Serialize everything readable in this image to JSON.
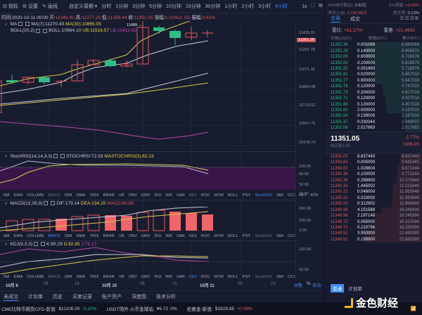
{
  "toolbar": {
    "indicators": "指标",
    "settings": "设置",
    "draw": "画线",
    "custom_period": "自定义周期",
    "intervals": [
      "分时",
      "1分钟",
      "3分钟",
      "5分钟",
      "10分钟",
      "15分钟",
      "30分钟",
      "1小时",
      "2小时",
      "3小时",
      "4小时"
    ],
    "active_interval": "4小时",
    "refresh": "1s",
    "window_mode": "单窗口"
  },
  "info": {
    "time_label": "时间:",
    "time": "2020-10-11 00:00",
    "open_label": "开:",
    "open": "11349.90",
    "high_label": "高:",
    "high": "11377.20",
    "low_label": "低:",
    "low": "11308.44",
    "close_label": "收:",
    "close": "11351.05",
    "change_label": "涨幅:",
    "change": "0.01%(1.15)",
    "amplitude_label": "振幅:",
    "amplitude": "0.61%"
  },
  "main_chart": {
    "ma_label": "MA",
    "ma7": "MA(7):11270.43",
    "ma30": "MA(30):10865.05",
    "boll_label": "BOLL(20,2)",
    "boll": "BOLL:10964.10",
    "ub": "UB:11516.57",
    "lb": "LB:10411.62",
    "high_marker": "11489 →",
    "axis": [
      "11435.01",
      "11251.78",
      "11071.49",
      "10894.08",
      "10719.52",
      "10547.75",
      "10378.74"
    ],
    "current_price_tag": "11351.05"
  },
  "stochrsi": {
    "label": "StochRSI(14,14,3,3)",
    "stochrsi": "STOCHRSI:72.53",
    "ma": "MASTOCHRSI(3):82.23",
    "axis": [
      "100.00",
      "80.00",
      "50.00",
      "20.00"
    ]
  },
  "indicator_tabs": [
    "MA",
    "EMA",
    "VOLUME",
    "MACD",
    "DMI",
    "DMA",
    "TRIX",
    "BRAR",
    "VR",
    "OBV",
    "EMV",
    "RSI",
    "WR",
    "SAR",
    "KDJ",
    "ROC",
    "MTM",
    "BOLL",
    "PSY",
    "StochRSI",
    "SMI",
    "CCI",
    "MFI",
    "ATR"
  ],
  "macd": {
    "label": "MACD(12,26,9)",
    "dif": "DIF:179.14",
    "dea": "DEA:134.20",
    "macd": "MACD:89.88",
    "axis": [
      "200.00",
      "100.00",
      "0.00"
    ]
  },
  "kdj": {
    "label": "KDJ(9,3,3)",
    "k": "K:80.29",
    "d": "D:82.85",
    "j": "J:75.17",
    "axis": [
      "100.00",
      "50.00"
    ]
  },
  "time_axis": {
    "labels": [
      "10月 9",
      "08",
      "16",
      "10月 10",
      "08",
      "16",
      "10月 11",
      "08",
      "16"
    ],
    "log": "对数",
    "pct": "%",
    "auto": "自动"
  },
  "bottom_tabs": [
    "未成交",
    "计划单",
    "历史",
    "买卖记录",
    "账户资产",
    "深度图",
    "技术分析"
  ],
  "ticker": {
    "items": [
      {
        "name": "CME比特币期货CFD-新浪:",
        "price": "$11106.00",
        "change": "-0.20%",
        "dir": "down"
      },
      {
        "name": "USDT场外-火币金球站:",
        "price": "¥6.72",
        "change": "0%",
        "dir": "flat"
      },
      {
        "name": "伦敦金-新浪:",
        "price": "$1929.85",
        "change": "+0.08%",
        "dir": "up"
      }
    ],
    "watermark": "金色财经"
  },
  "right_panel": {
    "vol24_label": "24H成交额($):",
    "vol24": "2.62亿",
    "m5_label": "5m涨幅:",
    "m5": "+0.03%",
    "inflow_label": "净流入($):",
    "inflow": "2,742.68万",
    "turnover_label": "换手率:",
    "turnover": "0.13%",
    "tab_trade": "交易",
    "tab_deal": "成交",
    "weibi_label": "委比:",
    "weibi": "+51.17%",
    "weicha_label": "委差:",
    "weicha": "+21.4992",
    "col_price": "价格(USDT)",
    "col_qty": "数量(BTC)",
    "col_total": "累计(BTC)",
    "asks": [
      [
        "11352.36",
        "0.001088",
        "6.860064"
      ],
      [
        "11352.29",
        "0.140000",
        "6.858976"
      ],
      [
        "11352.05",
        "0.900000",
        "6.718976"
      ],
      [
        "11352.00",
        "0.100000",
        "5.818976"
      ],
      [
        "11351.92",
        "0.051960",
        "5.718976"
      ],
      [
        "11351.91",
        "0.020000",
        "5.667016"
      ],
      [
        "11351.77",
        "0.900000",
        "5.647016"
      ],
      [
        "11351.76",
        "0.120000",
        "4.747016"
      ],
      [
        "11351.73",
        "0.200000",
        "4.627016"
      ],
      [
        "11351.71",
        "0.120000",
        "4.427016"
      ],
      [
        "11351.66",
        "0.120000",
        "4.307016"
      ],
      [
        "11351.60",
        "2.000000",
        "4.187016"
      ],
      [
        "11351.59",
        "0.139009",
        "2.187016"
      ],
      [
        "11351.47",
        "0.030344",
        "2.048007"
      ],
      [
        "11351.06",
        "2.017663",
        "2.017663"
      ]
    ],
    "last_price": "11351.05",
    "last_price_usd": "$11351.05",
    "pct_change": "2.77%",
    "abs_change": "+306.05",
    "bids": [
      [
        "11351.05",
        "8.637440",
        "8.637440"
      ],
      [
        "11350.83",
        "0.005000",
        "8.642440"
      ],
      [
        "11350.82",
        "1.028604",
        "9.671044"
      ],
      [
        "11350.36",
        "0.100000",
        "9.771044"
      ],
      [
        "11350.35",
        "0.299900",
        "10.070944"
      ],
      [
        "11350.34",
        "1.445002",
        "11.515946"
      ],
      [
        "11350.22",
        "0.048000",
        "11.563946"
      ],
      [
        "11350.20",
        "0.020000",
        "11.583946"
      ],
      [
        "11350.00",
        "0.312902",
        "11.896848"
      ],
      [
        "11349.99",
        "4.151588",
        "16.048436"
      ],
      [
        "11349.98",
        "2.197148",
        "18.245584"
      ],
      [
        "11349.72",
        "0.065000",
        "18.310584"
      ],
      [
        "11349.71",
        "0.219796",
        "18.530380"
      ],
      [
        "11349.51",
        "3.950000",
        "22.480380"
      ],
      [
        "11348.81",
        "0.199900",
        "22.680280"
      ]
    ],
    "order_type": "普通",
    "plan_label": "计划单"
  },
  "colors": {
    "up": "#e0565a",
    "down": "#2ebd85",
    "accent": "#3e8cff",
    "yellow": "#e6d34a",
    "purple": "#c64bb8"
  }
}
